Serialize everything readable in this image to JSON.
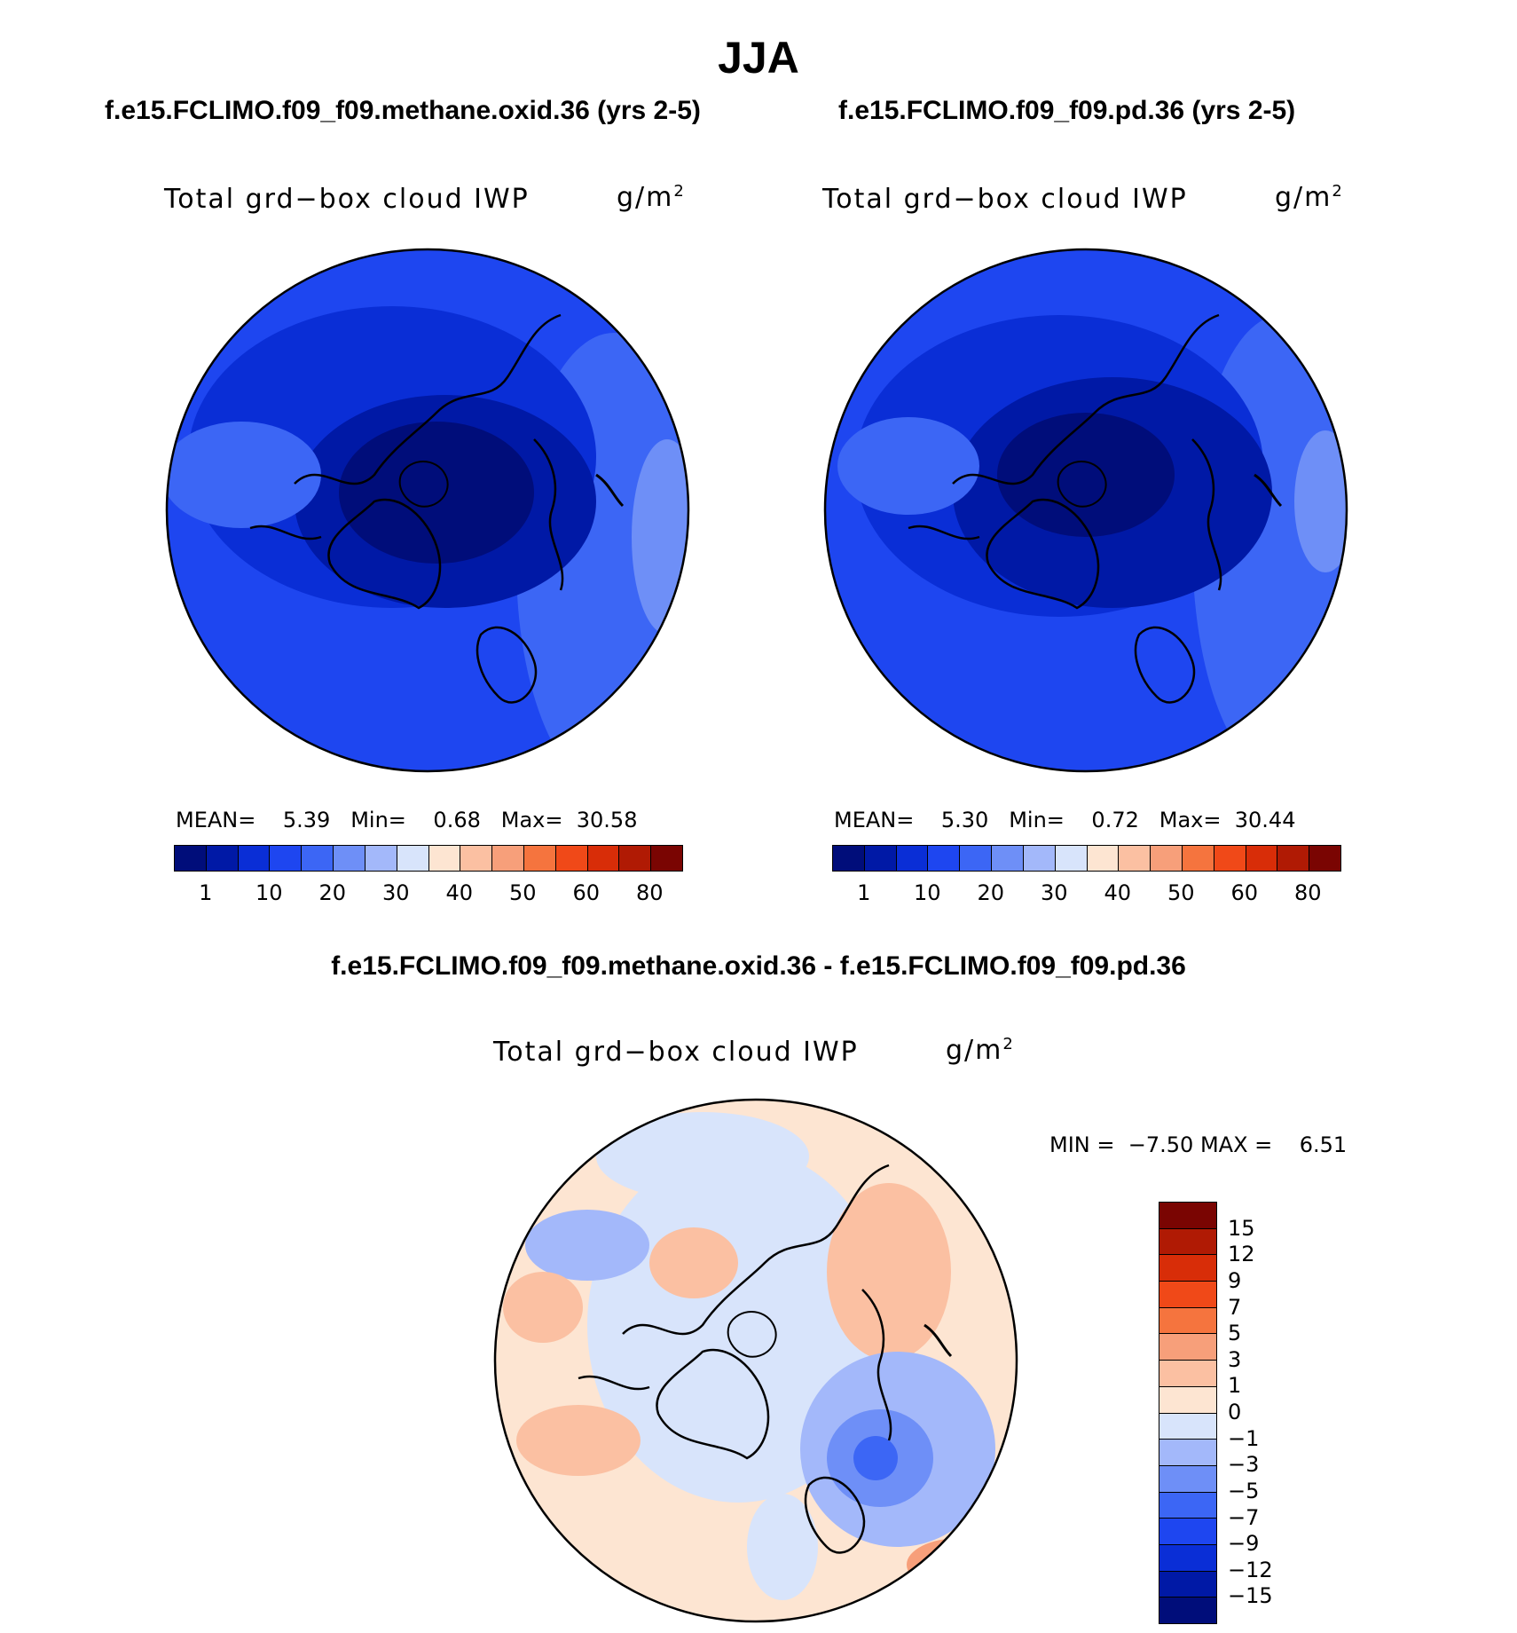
{
  "title": "JJA",
  "panels": [
    {
      "case_title": "f.e15.FCLIMO.f09_f09.methane.oxid.36 (yrs 2-5)",
      "variable": "Total grd−box cloud IWP",
      "units": "g/m",
      "units_sup": "2",
      "stats": {
        "mean_label": "MEAN=",
        "mean": "5.39",
        "min_label": "Min=",
        "min": "0.68",
        "max_label": "Max=",
        "max": "30.58"
      }
    },
    {
      "case_title": "f.e15.FCLIMO.f09_f09.pd.36 (yrs 2-5)",
      "variable": "Total grd−box cloud IWP",
      "units": "g/m",
      "units_sup": "2",
      "stats": {
        "mean_label": "MEAN=",
        "mean": "5.30",
        "min_label": "Min=",
        "min": "0.72",
        "max_label": "Max=",
        "max": "30.44"
      }
    }
  ],
  "diff": {
    "case_title": "f.e15.FCLIMO.f09_f09.methane.oxid.36 - f.e15.FCLIMO.f09_f09.pd.36",
    "variable": "Total grd−box cloud IWP",
    "units": "g/m",
    "units_sup": "2",
    "stats": {
      "min_label": "MIN =",
      "min": "−7.50",
      "max_label": "MAX =",
      "max": "6.51"
    }
  },
  "colorbar_main": {
    "colors": [
      "#000d7a",
      "#0019a6",
      "#0a2ed6",
      "#1e46f0",
      "#3c66f5",
      "#6e8ff7",
      "#a3b8fa",
      "#d8e4fb",
      "#fde5d2",
      "#fbc0a2",
      "#f79f7a",
      "#f5743e",
      "#f04918",
      "#d82d08",
      "#b01a04",
      "#7a0502"
    ],
    "labels": [
      "1",
      "10",
      "20",
      "30",
      "40",
      "50",
      "60",
      "80"
    ]
  },
  "colorbar_diff": {
    "colors": [
      "#000d7a",
      "#0019a6",
      "#0a2ed6",
      "#1e46f0",
      "#3c66f5",
      "#6e8ff7",
      "#a3b8fa",
      "#d8e4fb",
      "#fde5d2",
      "#fbc0a2",
      "#f79f7a",
      "#f5743e",
      "#f04918",
      "#d82d08",
      "#b01a04",
      "#7a0502"
    ],
    "labels": [
      "15",
      "12",
      "9",
      "7",
      "5",
      "3",
      "1",
      "0",
      "−1",
      "−3",
      "−5",
      "−7",
      "−9",
      "−12",
      "−15"
    ]
  }
}
